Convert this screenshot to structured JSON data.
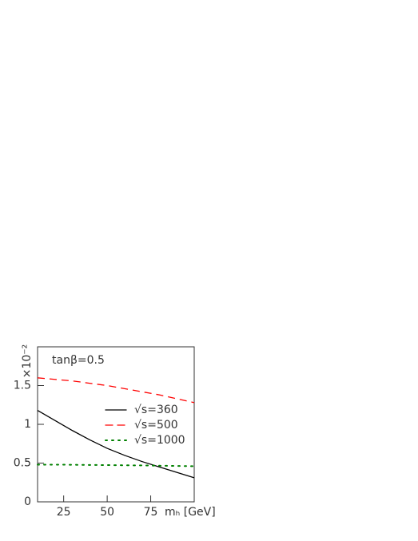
{
  "chart_data": {
    "type": "line",
    "annotation": "tanβ=0.5",
    "x_label": "mₕ [GeV]",
    "y_label": "×10⁻²",
    "x": [
      10,
      20,
      30,
      40,
      50,
      60,
      70,
      80,
      90,
      100
    ],
    "series": [
      {
        "name": "√s=360",
        "color": "#000000",
        "style": "solid",
        "values": [
          1.18,
          1.05,
          0.92,
          0.8,
          0.69,
          0.6,
          0.52,
          0.45,
          0.38,
          0.31
        ]
      },
      {
        "name": "√s=500",
        "color": "#ff0000",
        "style": "dashed",
        "values": [
          1.6,
          1.58,
          1.56,
          1.53,
          1.5,
          1.46,
          1.42,
          1.38,
          1.33,
          1.28
        ]
      },
      {
        "name": "√s=1000",
        "color": "#008000",
        "style": "dotted",
        "values": [
          0.48,
          0.48,
          0.478,
          0.476,
          0.474,
          0.472,
          0.47,
          0.466,
          0.463,
          0.46
        ]
      }
    ],
    "xlim": [
      10,
      100
    ],
    "xticks": [
      25,
      50,
      75
    ],
    "ylim": [
      0,
      2
    ],
    "yticks": [
      0,
      0.5,
      1,
      1.5
    ]
  }
}
